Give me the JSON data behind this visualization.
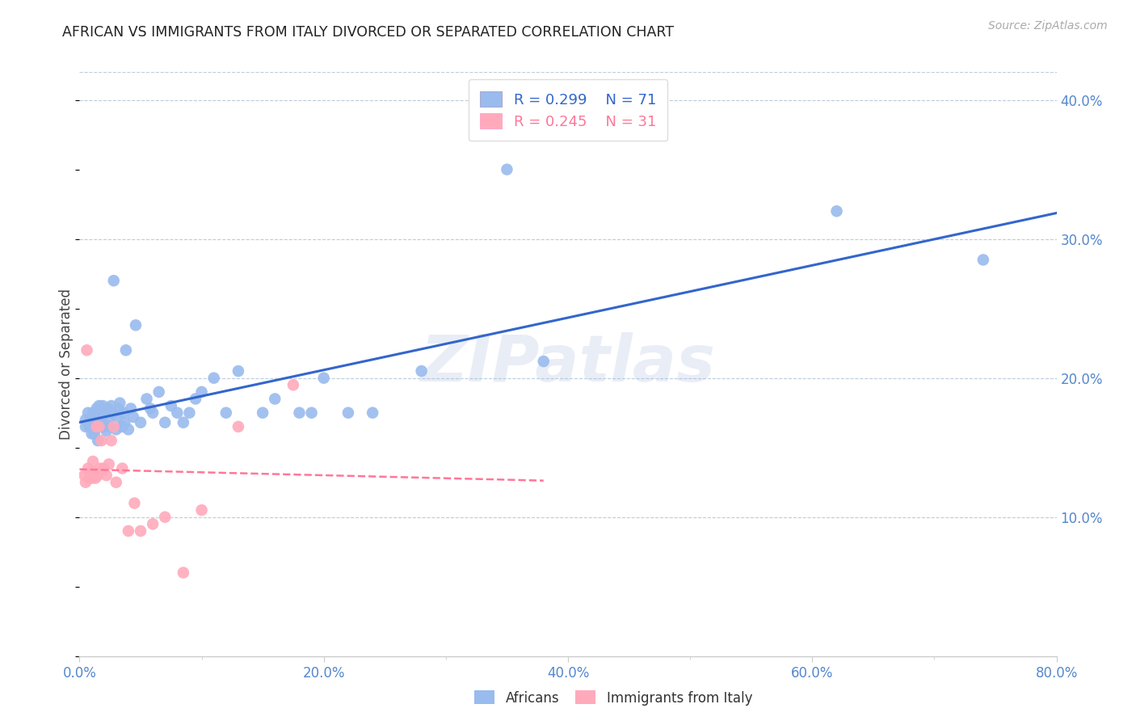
{
  "title": "AFRICAN VS IMMIGRANTS FROM ITALY DIVORCED OR SEPARATED CORRELATION CHART",
  "source": "Source: ZipAtlas.com",
  "ylabel": "Divorced or Separated",
  "xlim": [
    0.0,
    0.8
  ],
  "ylim": [
    0.0,
    0.42
  ],
  "africans_R": 0.299,
  "africans_N": 71,
  "italy_R": 0.245,
  "italy_N": 31,
  "blue_color": "#99BBEE",
  "pink_color": "#FFAABB",
  "line_blue": "#3366CC",
  "line_pink": "#FF7799",
  "africans_x": [
    0.005,
    0.005,
    0.007,
    0.008,
    0.009,
    0.01,
    0.01,
    0.011,
    0.011,
    0.012,
    0.012,
    0.013,
    0.013,
    0.014,
    0.014,
    0.015,
    0.015,
    0.016,
    0.016,
    0.017,
    0.017,
    0.018,
    0.019,
    0.02,
    0.021,
    0.022,
    0.023,
    0.024,
    0.025,
    0.026,
    0.027,
    0.028,
    0.03,
    0.031,
    0.032,
    0.033,
    0.035,
    0.036,
    0.037,
    0.038,
    0.04,
    0.042,
    0.044,
    0.046,
    0.05,
    0.055,
    0.058,
    0.06,
    0.065,
    0.07,
    0.075,
    0.08,
    0.085,
    0.09,
    0.095,
    0.1,
    0.11,
    0.12,
    0.13,
    0.15,
    0.16,
    0.18,
    0.19,
    0.2,
    0.22,
    0.24,
    0.28,
    0.35,
    0.38,
    0.62,
    0.74
  ],
  "africans_y": [
    0.165,
    0.17,
    0.175,
    0.165,
    0.17,
    0.16,
    0.17,
    0.165,
    0.175,
    0.16,
    0.168,
    0.163,
    0.172,
    0.165,
    0.178,
    0.155,
    0.175,
    0.168,
    0.18,
    0.165,
    0.172,
    0.17,
    0.18,
    0.165,
    0.175,
    0.162,
    0.178,
    0.17,
    0.165,
    0.18,
    0.175,
    0.27,
    0.163,
    0.172,
    0.178,
    0.182,
    0.165,
    0.175,
    0.168,
    0.22,
    0.163,
    0.178,
    0.172,
    0.238,
    0.168,
    0.185,
    0.178,
    0.175,
    0.19,
    0.168,
    0.18,
    0.175,
    0.168,
    0.175,
    0.185,
    0.19,
    0.2,
    0.175,
    0.205,
    0.175,
    0.185,
    0.175,
    0.175,
    0.2,
    0.175,
    0.175,
    0.205,
    0.35,
    0.212,
    0.32,
    0.285
  ],
  "italy_x": [
    0.004,
    0.005,
    0.006,
    0.007,
    0.008,
    0.009,
    0.01,
    0.011,
    0.012,
    0.013,
    0.014,
    0.015,
    0.016,
    0.017,
    0.018,
    0.02,
    0.022,
    0.024,
    0.026,
    0.028,
    0.03,
    0.035,
    0.04,
    0.045,
    0.05,
    0.06,
    0.07,
    0.085,
    0.1,
    0.13,
    0.175
  ],
  "italy_y": [
    0.13,
    0.125,
    0.22,
    0.135,
    0.128,
    0.132,
    0.128,
    0.14,
    0.132,
    0.128,
    0.165,
    0.13,
    0.165,
    0.135,
    0.155,
    0.135,
    0.13,
    0.138,
    0.155,
    0.165,
    0.125,
    0.135,
    0.09,
    0.11,
    0.09,
    0.095,
    0.1,
    0.06,
    0.105,
    0.165,
    0.195
  ],
  "background_color": "#FFFFFF",
  "grid_color": "#BBCCDD",
  "title_color": "#222222",
  "axis_color": "#5588CC",
  "watermark_text": "ZIPatlas",
  "watermark_color": "#AABBDD",
  "watermark_alpha": 0.25
}
